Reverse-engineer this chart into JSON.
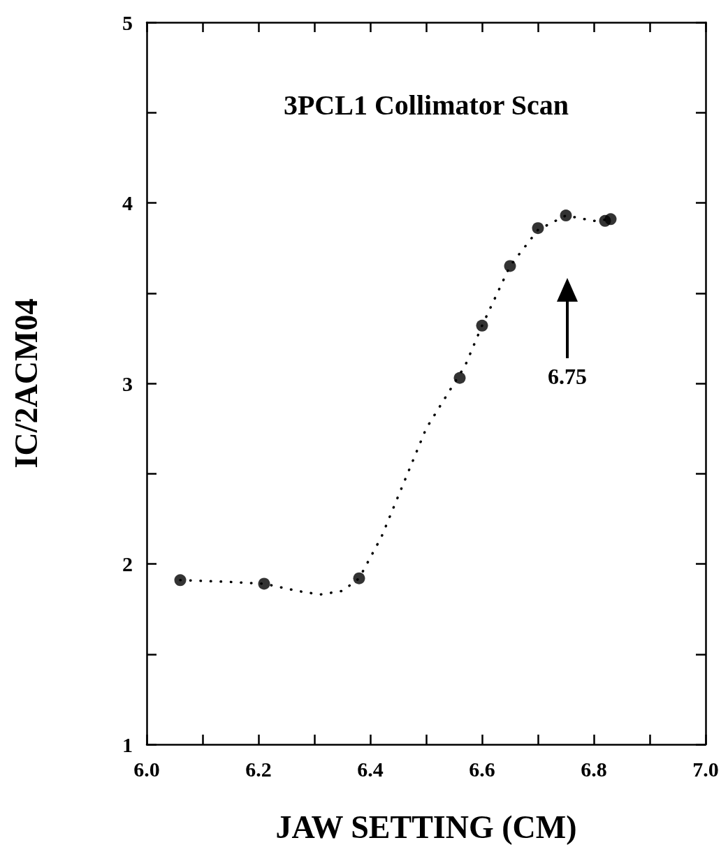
{
  "chart_data": {
    "type": "scatter",
    "title": "3PCL1 Collimator Scan",
    "xlabel": "JAW SETTING (CM)",
    "ylabel": "IC/2ACM04",
    "xlim": [
      6.0,
      7.0
    ],
    "xticks": [
      {
        "value": 6.0,
        "label": "6.0"
      },
      {
        "value": 6.1,
        "label": null
      },
      {
        "value": 6.2,
        "label": "6.2"
      },
      {
        "value": 6.3,
        "label": null
      },
      {
        "value": 6.4,
        "label": "6.4"
      },
      {
        "value": 6.5,
        "label": null
      },
      {
        "value": 6.6,
        "label": "6.6"
      },
      {
        "value": 6.7,
        "label": null
      },
      {
        "value": 6.8,
        "label": "6.8"
      },
      {
        "value": 6.9,
        "label": null
      },
      {
        "value": 7.0,
        "label": "7.0"
      }
    ],
    "ylim": [
      1,
      5
    ],
    "yticks": [
      1,
      {
        "value": 1.5,
        "label": null
      },
      2,
      {
        "value": 2.5,
        "label": null
      },
      3,
      {
        "value": 3.5,
        "label": null
      },
      4,
      {
        "value": 4.5,
        "label": null
      },
      5
    ],
    "grid": false,
    "series": [
      {
        "type": "line",
        "color": "#000000",
        "marker": "none",
        "line_style": "dotted",
        "x": [
          6.06,
          6.15,
          6.21,
          6.27,
          6.31,
          6.35,
          6.38,
          6.42,
          6.46,
          6.5,
          6.54,
          6.57,
          6.6,
          6.65,
          6.7,
          6.75,
          6.8,
          6.83
        ],
        "values": [
          1.91,
          1.9,
          1.89,
          1.85,
          1.83,
          1.85,
          1.92,
          2.15,
          2.45,
          2.75,
          2.95,
          3.1,
          3.32,
          3.65,
          3.85,
          3.93,
          3.9,
          3.91
        ]
      },
      {
        "color": "#000000",
        "marker": "circle",
        "x": [
          6.06,
          6.21,
          6.38,
          6.56,
          6.6,
          6.65,
          6.7,
          6.75,
          6.82,
          6.83
        ],
        "values": [
          1.91,
          1.89,
          1.92,
          3.03,
          3.32,
          3.65,
          3.86,
          3.93,
          3.9,
          3.91
        ]
      }
    ],
    "annotations": [
      "6.75"
    ]
  }
}
